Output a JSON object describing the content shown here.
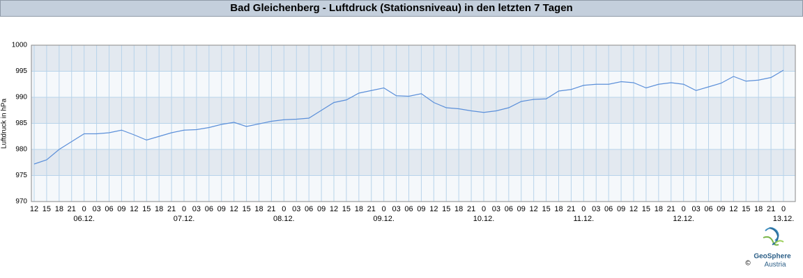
{
  "chart_data": {
    "type": "line",
    "title": "Bad Gleichenberg - Luftdruck (Stationsniveau) in den letzten 7 Tagen",
    "y_label": "Luftdruck in hPa",
    "categories": [
      "12",
      "15",
      "18",
      "21",
      "0",
      "03",
      "06",
      "09",
      "12",
      "15",
      "18",
      "21",
      "0",
      "03",
      "06",
      "09",
      "12",
      "15",
      "18",
      "21",
      "0",
      "03",
      "06",
      "09",
      "12",
      "15",
      "18",
      "21",
      "0",
      "03",
      "06",
      "09",
      "12",
      "15",
      "18",
      "21",
      "0",
      "03",
      "06",
      "09",
      "12",
      "15",
      "18",
      "21",
      "0",
      "03",
      "06",
      "09",
      "12",
      "15",
      "18",
      "21",
      "0",
      "03",
      "06",
      "09",
      "12",
      "15",
      "18",
      "21",
      "0"
    ],
    "date_labels": [
      null,
      null,
      null,
      null,
      "06.12.",
      null,
      null,
      null,
      null,
      null,
      null,
      null,
      "07.12.",
      null,
      null,
      null,
      null,
      null,
      null,
      null,
      "08.12.",
      null,
      null,
      null,
      null,
      null,
      null,
      null,
      "09.12.",
      null,
      null,
      null,
      null,
      null,
      null,
      null,
      "10.12.",
      null,
      null,
      null,
      null,
      null,
      null,
      null,
      "11.12.",
      null,
      null,
      null,
      null,
      null,
      null,
      null,
      "12.12.",
      null,
      null,
      null,
      null,
      null,
      null,
      null,
      "13.12."
    ],
    "series": [
      {
        "color": "#5b8fd9",
        "values": [
          977.2,
          978,
          980,
          981.5,
          983,
          983,
          983.2,
          983.7,
          982.8,
          981.8,
          982.5,
          983.2,
          983.7,
          983.8,
          984.2,
          984.8,
          985.2,
          984.4,
          984.9,
          985.4,
          985.7,
          985.8,
          986,
          987.5,
          989,
          989.5,
          990.8,
          991.3,
          991.8,
          990.3,
          990.2,
          990.7,
          989,
          988,
          987.8,
          987.4,
          987.1,
          987.4,
          988,
          989.2,
          989.6,
          989.7,
          991.2,
          991.5,
          992.3,
          992.5,
          992.5,
          993,
          992.8,
          991.8,
          992.5,
          992.8,
          992.5,
          991.3,
          992,
          992.7,
          994,
          993.1,
          993.3,
          993.8,
          995.2
        ]
      }
    ],
    "ylim": [
      970,
      1000
    ],
    "yticks": [
      970,
      975,
      980,
      985,
      990,
      995,
      1000
    ],
    "grid": true,
    "logo": {
      "name": "GeoSphere",
      "sub": "Austria",
      "copyright": "©"
    }
  }
}
